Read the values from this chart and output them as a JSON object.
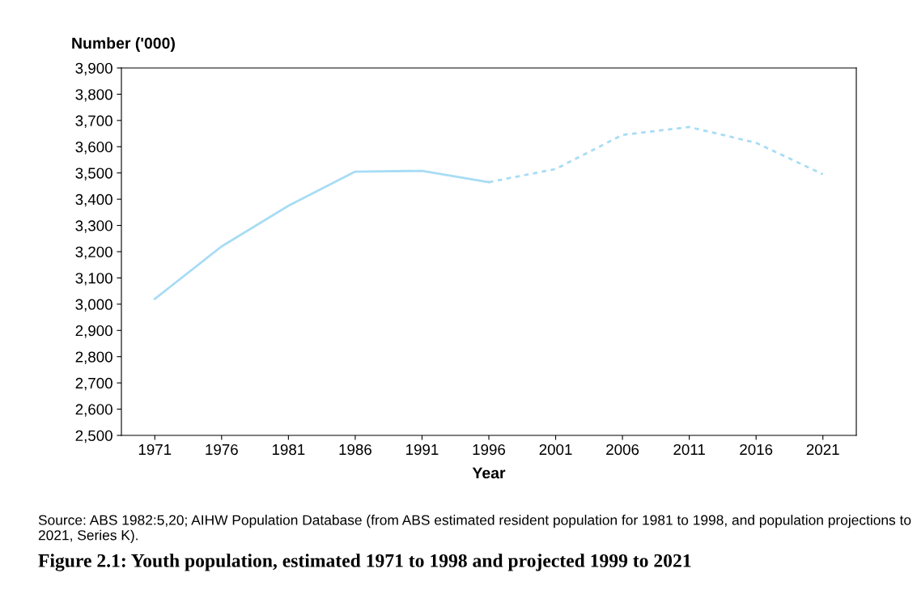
{
  "chart_data": {
    "type": "line",
    "title": "Figure 2.1: Youth population, estimated 1971 to 1998 and projected 1999 to 2021",
    "xlabel": "Year",
    "ylabel": "Number ('000)",
    "series": [
      {
        "color": "#a8dcf5",
        "line_style": "solid",
        "x": [
          1971,
          1976,
          1981,
          1986,
          1991,
          1996
        ],
        "values": [
          3020,
          3220,
          3375,
          3505,
          3508,
          3465
        ]
      },
      {
        "color": "#a8dcf5",
        "line_style": "dotted",
        "x": [
          1996,
          2001,
          2006,
          2011,
          2016,
          2021
        ],
        "values": [
          3465,
          3515,
          3645,
          3675,
          3615,
          3495
        ]
      }
    ],
    "xlim": [
      1968.5,
      2023.5
    ],
    "xticks": [
      1971,
      1976,
      1981,
      1986,
      1991,
      1996,
      2001,
      2006,
      2011,
      2016,
      2021
    ],
    "ylim": [
      2500,
      3900
    ],
    "yticks": [
      {
        "value": 2500,
        "label": "2,500"
      },
      {
        "value": 2600,
        "label": "2,600"
      },
      {
        "value": 2700,
        "label": "2,700"
      },
      {
        "value": 2800,
        "label": "2,800"
      },
      {
        "value": 2900,
        "label": "2,900"
      },
      {
        "value": 3000,
        "label": "3,000"
      },
      {
        "value": 3100,
        "label": "3,100"
      },
      {
        "value": 3200,
        "label": "3,200"
      },
      {
        "value": 3300,
        "label": "3,300"
      },
      {
        "value": 3400,
        "label": "3,400"
      },
      {
        "value": 3500,
        "label": "3,500"
      },
      {
        "value": 3600,
        "label": "3,600"
      },
      {
        "value": 3700,
        "label": "3,700"
      },
      {
        "value": 3800,
        "label": "3,800"
      },
      {
        "value": 3900,
        "label": "3,900"
      }
    ],
    "grid": false,
    "legend": false,
    "annotations": [
      "Source: ABS 1982:5,20; AIHW Population Database (from ABS estimated resident population for 1981 to 1998, and population projections to 2021, Series K)."
    ]
  }
}
